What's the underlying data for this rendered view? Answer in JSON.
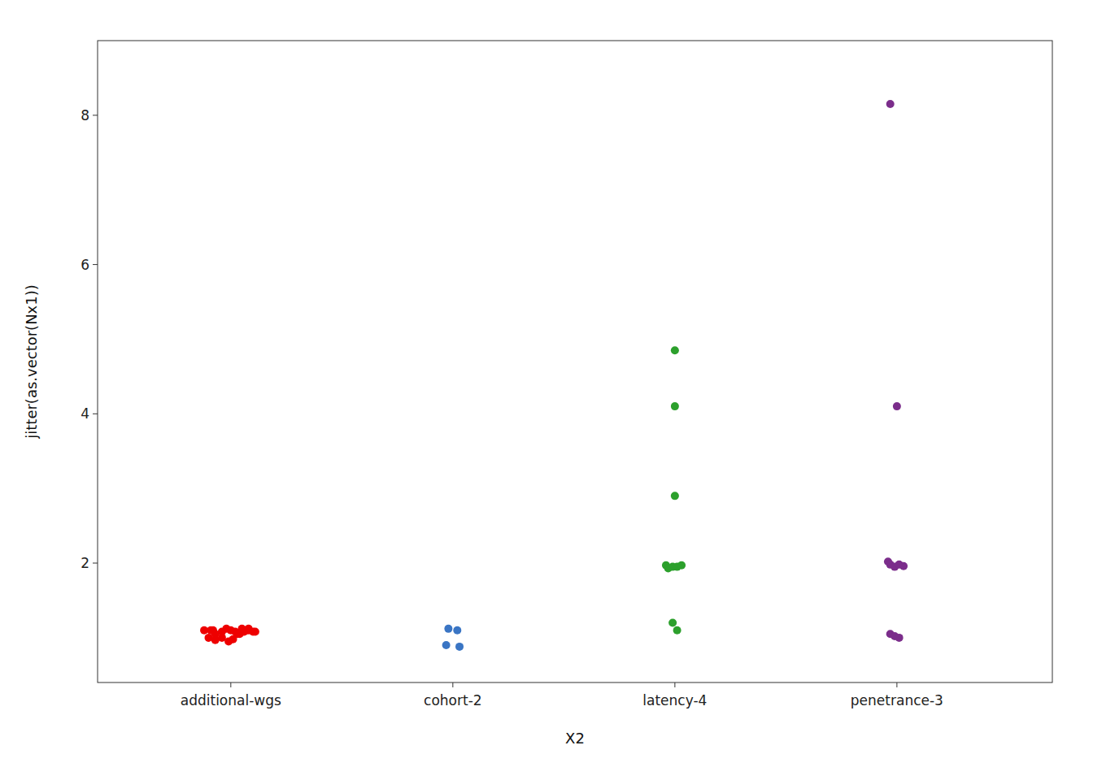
{
  "chart_data": {
    "type": "scatter",
    "xlabel": "X2",
    "ylabel": "jitter(as.vector(Nx1))",
    "xlim": [
      0.4,
      4.7
    ],
    "ylim": [
      0.4,
      9.0
    ],
    "xticks": [
      {
        "value": 1,
        "label": "additional-wgs"
      },
      {
        "value": 2,
        "label": "cohort-2"
      },
      {
        "value": 3,
        "label": "latency-4"
      },
      {
        "value": 4,
        "label": "penetrance-3"
      }
    ],
    "yticks": [
      2,
      4,
      6,
      8
    ],
    "grid": false,
    "series": [
      {
        "name": "additional-wgs",
        "color": "#EE0000",
        "x": [
          0.88,
          0.91,
          0.93,
          0.96,
          0.98,
          1.0,
          1.02,
          1.04,
          1.06,
          1.08,
          0.9,
          0.93,
          0.96,
          0.99,
          1.01,
          1.03,
          1.06,
          1.08,
          1.1,
          1.07,
          0.92,
          1.05,
          1.11
        ],
        "values": [
          1.1,
          1.1,
          1.05,
          1.08,
          1.12,
          1.1,
          1.08,
          1.05,
          1.08,
          1.1,
          1.0,
          0.97,
          1.0,
          0.95,
          0.98,
          1.05,
          1.1,
          1.12,
          1.08,
          1.1,
          1.1,
          1.12,
          1.08
        ]
      },
      {
        "name": "cohort-2",
        "color": "#3A75C4",
        "x": [
          1.98,
          2.02,
          1.97,
          2.03
        ],
        "values": [
          1.12,
          1.1,
          0.9,
          0.88
        ]
      },
      {
        "name": "latency-4",
        "color": "#2CA02C",
        "x": [
          3.0,
          3.0,
          3.0,
          2.96,
          2.97,
          2.99,
          3.01,
          3.03,
          2.99,
          3.01
        ],
        "values": [
          4.85,
          4.1,
          2.9,
          1.97,
          1.93,
          1.95,
          1.95,
          1.97,
          1.2,
          1.1
        ]
      },
      {
        "name": "penetrance-3",
        "color": "#7B2D8B",
        "x": [
          3.97,
          4.0,
          3.96,
          3.97,
          3.99,
          4.01,
          4.03,
          3.97,
          3.99,
          4.01
        ],
        "values": [
          8.15,
          4.1,
          2.02,
          1.98,
          1.95,
          1.98,
          1.96,
          1.05,
          1.02,
          1.0
        ]
      }
    ]
  }
}
